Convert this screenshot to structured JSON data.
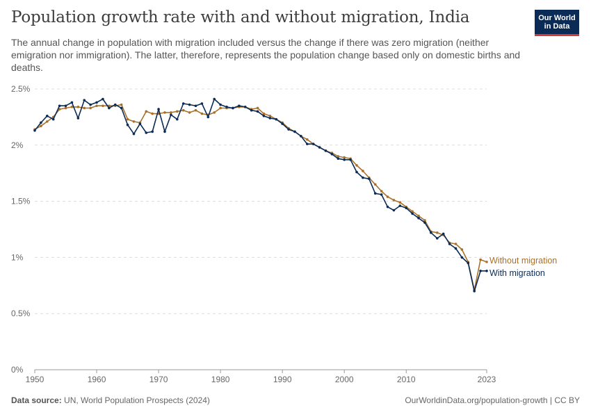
{
  "title": "Population growth rate with and without migration, India",
  "subtitle": "The annual change in population with migration included versus the change if there was zero migration (neither emigration nor immigration). The latter, therefore, represents the population change based only on domestic births and deaths.",
  "logo": {
    "line1": "Our World",
    "line2": "in Data"
  },
  "footer": {
    "source_label": "Data source:",
    "source_text": "UN, World Population Prospects (2024)",
    "link_url_text": "OurWorldinData.org/population-growth",
    "license": " | CC BY"
  },
  "colors": {
    "with_migration": "#0b2b57",
    "without_migration": "#a8712b",
    "grid": "#dcdcdc",
    "axis": "#555555"
  },
  "chart_data": {
    "type": "line",
    "xlim": [
      1950,
      2023
    ],
    "ylim": [
      0,
      2.5
    ],
    "y_ticks": [
      {
        "value": 0,
        "label": "0%"
      },
      {
        "value": 0.5,
        "label": "0.5%"
      },
      {
        "value": 1,
        "label": "1%"
      },
      {
        "value": 1.5,
        "label": "1.5%"
      },
      {
        "value": 2,
        "label": "2%"
      },
      {
        "value": 2.5,
        "label": "2.5%"
      }
    ],
    "x_ticks": [
      {
        "value": 1950,
        "label": "1950"
      },
      {
        "value": 1960,
        "label": "1960"
      },
      {
        "value": 1970,
        "label": "1970"
      },
      {
        "value": 1980,
        "label": "1980"
      },
      {
        "value": 1990,
        "label": "1990"
      },
      {
        "value": 2000,
        "label": "2000"
      },
      {
        "value": 2010,
        "label": "2010"
      },
      {
        "value": 2023,
        "label": "2023"
      }
    ],
    "grid": "horizontal-dashed",
    "series": [
      {
        "name": "Without migration",
        "color": "#a8712b",
        "x": [
          1950,
          1951,
          1952,
          1953,
          1954,
          1955,
          1956,
          1957,
          1958,
          1959,
          1960,
          1961,
          1962,
          1963,
          1964,
          1965,
          1966,
          1967,
          1968,
          1969,
          1970,
          1971,
          1972,
          1973,
          1974,
          1975,
          1976,
          1977,
          1978,
          1979,
          1980,
          1981,
          1982,
          1983,
          1984,
          1985,
          1986,
          1987,
          1988,
          1989,
          1990,
          1991,
          1992,
          1993,
          1994,
          1995,
          1996,
          1997,
          1998,
          1999,
          2000,
          2001,
          2002,
          2003,
          2004,
          2005,
          2006,
          2007,
          2008,
          2009,
          2010,
          2011,
          2012,
          2013,
          2014,
          2015,
          2016,
          2017,
          2018,
          2019,
          2020,
          2021,
          2022,
          2023
        ],
        "y": [
          2.14,
          2.17,
          2.21,
          2.25,
          2.32,
          2.33,
          2.34,
          2.34,
          2.33,
          2.33,
          2.35,
          2.35,
          2.35,
          2.35,
          2.36,
          2.23,
          2.21,
          2.2,
          2.3,
          2.28,
          2.28,
          2.29,
          2.29,
          2.3,
          2.31,
          2.29,
          2.31,
          2.28,
          2.27,
          2.29,
          2.33,
          2.33,
          2.33,
          2.34,
          2.34,
          2.32,
          2.33,
          2.28,
          2.26,
          2.23,
          2.2,
          2.15,
          2.12,
          2.08,
          2.05,
          2.01,
          1.98,
          1.95,
          1.93,
          1.9,
          1.89,
          1.88,
          1.82,
          1.77,
          1.71,
          1.65,
          1.59,
          1.54,
          1.51,
          1.49,
          1.45,
          1.41,
          1.37,
          1.33,
          1.23,
          1.22,
          1.2,
          1.13,
          1.12,
          1.07,
          0.96,
          0.71,
          0.98,
          0.96
        ]
      },
      {
        "name": "With migration",
        "color": "#0b2b57",
        "x": [
          1950,
          1951,
          1952,
          1953,
          1954,
          1955,
          1956,
          1957,
          1958,
          1959,
          1960,
          1961,
          1962,
          1963,
          1964,
          1965,
          1966,
          1967,
          1968,
          1969,
          1970,
          1971,
          1972,
          1973,
          1974,
          1975,
          1976,
          1977,
          1978,
          1979,
          1980,
          1981,
          1982,
          1983,
          1984,
          1985,
          1986,
          1987,
          1988,
          1989,
          1990,
          1991,
          1992,
          1993,
          1994,
          1995,
          1996,
          1997,
          1998,
          1999,
          2000,
          2001,
          2002,
          2003,
          2004,
          2005,
          2006,
          2007,
          2008,
          2009,
          2010,
          2011,
          2012,
          2013,
          2014,
          2015,
          2016,
          2017,
          2018,
          2019,
          2020,
          2021,
          2022,
          2023
        ],
        "y": [
          2.13,
          2.2,
          2.26,
          2.23,
          2.35,
          2.35,
          2.38,
          2.24,
          2.4,
          2.36,
          2.38,
          2.41,
          2.33,
          2.36,
          2.33,
          2.18,
          2.1,
          2.19,
          2.11,
          2.12,
          2.32,
          2.12,
          2.27,
          2.23,
          2.37,
          2.36,
          2.35,
          2.37,
          2.25,
          2.41,
          2.36,
          2.34,
          2.33,
          2.35,
          2.34,
          2.31,
          2.3,
          2.26,
          2.24,
          2.23,
          2.19,
          2.14,
          2.12,
          2.08,
          2.01,
          2.01,
          1.98,
          1.95,
          1.92,
          1.88,
          1.87,
          1.87,
          1.76,
          1.71,
          1.7,
          1.57,
          1.56,
          1.45,
          1.42,
          1.46,
          1.44,
          1.39,
          1.35,
          1.31,
          1.22,
          1.17,
          1.21,
          1.12,
          1.08,
          1.0,
          0.95,
          0.7,
          0.88,
          0.88
        ]
      }
    ]
  }
}
